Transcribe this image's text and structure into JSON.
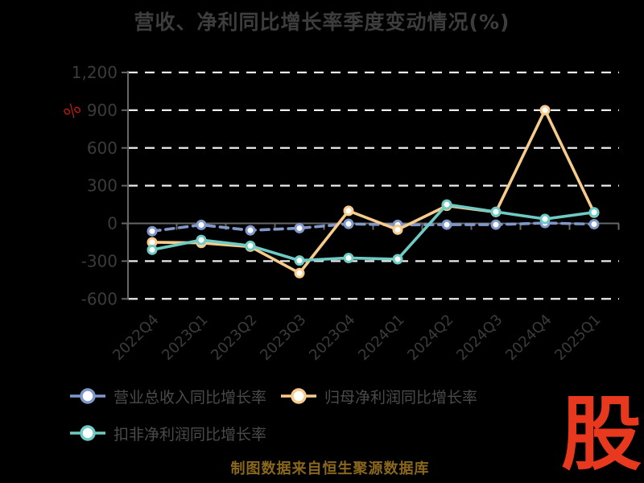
{
  "title": "营收、净利同比增长率季度变动情况(%)",
  "y_axis": {
    "unit_label": "%",
    "unit_color": "#b01b12",
    "tick_labels": [
      "1,200",
      "900",
      "600",
      "300",
      "0",
      "-300",
      "-600"
    ],
    "tick_values": [
      1200,
      900,
      600,
      300,
      0,
      -300,
      -600
    ]
  },
  "footer": {
    "source_note": "制图数据来自恒生聚源数据库"
  },
  "logo": {
    "text": "股"
  },
  "colors": {
    "background": "#000000",
    "title_text": "#3d3d3d",
    "tick_text": "#3b3b3b",
    "legend_text": "#4a4a4a",
    "gridline": "#ececec",
    "axis": "#666666",
    "marker_fill": "#ffffff"
  },
  "chart_data": {
    "type": "line",
    "title": "营收、净利同比增长率季度变动情况(%)",
    "ylabel": "%",
    "ylim": [
      -600,
      1200
    ],
    "grid": true,
    "legend_position": "bottom-left",
    "categories": [
      "2022Q4",
      "2023Q1",
      "2023Q2",
      "2023Q3",
      "2023Q4",
      "2024Q1",
      "2024Q2",
      "2024Q3",
      "2024Q4",
      "2025Q1"
    ],
    "series": [
      {
        "name": "营业总收入同比增长率",
        "color": "#7f97c9",
        "line_style": "dashed",
        "values": [
          -62,
          -12,
          -55,
          -38,
          -4,
          -12,
          -10,
          -10,
          3,
          -6
        ]
      },
      {
        "name": "归母净利润同比增长率",
        "color": "#f7cb8b",
        "line_style": "solid",
        "values": [
          -150,
          -155,
          -185,
          -395,
          100,
          -50,
          140,
          90,
          900,
          85
        ]
      },
      {
        "name": "扣非净利润同比增长率",
        "color": "#6ecbc3",
        "line_style": "solid",
        "values": [
          -210,
          -132,
          -178,
          -295,
          -275,
          -285,
          150,
          92,
          35,
          88
        ]
      }
    ]
  }
}
